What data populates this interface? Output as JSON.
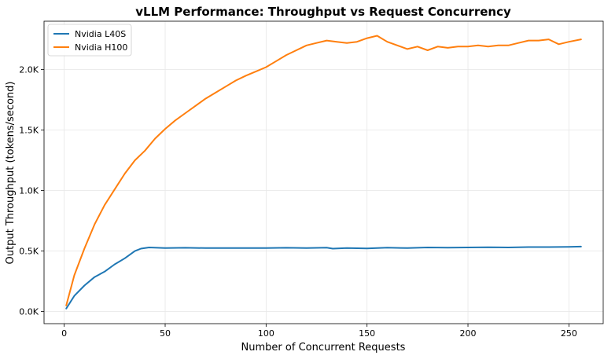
{
  "chart_data": {
    "type": "line",
    "title": "vLLM Performance: Throughput vs Request Concurrency",
    "xlabel": "Number of Concurrent Requests",
    "ylabel": "Output Throughput (tokens/second)",
    "xlim": [
      -10,
      267
    ],
    "ylim": [
      -100,
      2400
    ],
    "xticks": [
      0,
      50,
      100,
      150,
      200,
      250
    ],
    "xtick_labels": [
      "0",
      "50",
      "100",
      "150",
      "200",
      "250"
    ],
    "yticks": [
      0,
      500,
      1000,
      1500,
      2000
    ],
    "ytick_labels": [
      "0.0K",
      "0.5K",
      "1.0K",
      "1.5K",
      "2.0K"
    ],
    "grid": true,
    "legend_position": "top-left",
    "series": [
      {
        "name": "Nvidia L40S",
        "color": "#1f77b4",
        "x": [
          1,
          5,
          10,
          15,
          20,
          25,
          30,
          35,
          38,
          42,
          50,
          60,
          70,
          80,
          90,
          100,
          110,
          120,
          130,
          133,
          140,
          150,
          160,
          170,
          180,
          190,
          200,
          210,
          220,
          230,
          240,
          250,
          256
        ],
        "y": [
          25,
          130,
          215,
          285,
          330,
          390,
          440,
          500,
          520,
          530,
          525,
          527,
          525,
          525,
          525,
          525,
          527,
          525,
          528,
          520,
          525,
          522,
          528,
          525,
          530,
          528,
          530,
          532,
          530,
          533,
          533,
          535,
          537
        ]
      },
      {
        "name": "Nvidia H100",
        "color": "#ff7f0e",
        "x": [
          1,
          5,
          10,
          15,
          20,
          25,
          30,
          35,
          40,
          45,
          50,
          55,
          60,
          65,
          70,
          75,
          80,
          85,
          90,
          95,
          100,
          105,
          110,
          115,
          120,
          125,
          130,
          135,
          140,
          145,
          150,
          155,
          160,
          165,
          170,
          175,
          180,
          185,
          190,
          195,
          200,
          205,
          210,
          215,
          220,
          225,
          230,
          235,
          240,
          245,
          250,
          256
        ],
        "y": [
          50,
          300,
          520,
          720,
          880,
          1010,
          1140,
          1250,
          1330,
          1430,
          1510,
          1580,
          1640,
          1700,
          1760,
          1810,
          1860,
          1910,
          1950,
          1985,
          2020,
          2070,
          2120,
          2160,
          2200,
          2220,
          2240,
          2230,
          2220,
          2230,
          2260,
          2280,
          2230,
          2200,
          2170,
          2190,
          2160,
          2190,
          2180,
          2190,
          2190,
          2200,
          2190,
          2200,
          2200,
          2220,
          2240,
          2240,
          2250,
          2210,
          2230,
          2250
        ]
      }
    ]
  }
}
